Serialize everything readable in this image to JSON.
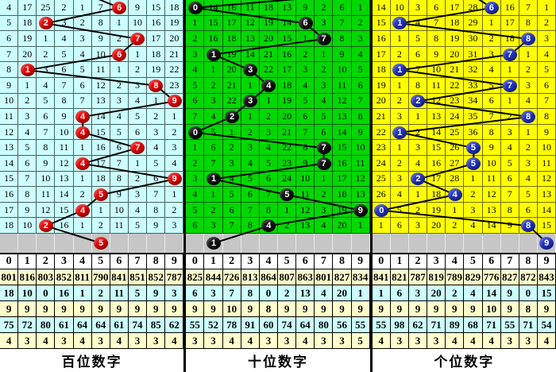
{
  "gray_row_bg": "#C6C6C6",
  "stats_row_colors": [
    "#FFFFCC",
    "#CCFFFF",
    "#FFFFCC",
    "#CCFFFF",
    "#FFFFCC"
  ],
  "line_color": "#000000",
  "chart_data": [
    {
      "type": "table",
      "title": "百位数字",
      "columns": [
        "0",
        "1",
        "2",
        "3",
        "4",
        "5",
        "6",
        "7",
        "8",
        "9"
      ],
      "cell_bg": "#CCFFFF",
      "grid_line": "#47625f",
      "ball_color": "#EE0000",
      "drawn_sequence": [
        6,
        2,
        7,
        6,
        1,
        8,
        9,
        4,
        4,
        7,
        4,
        9,
        5,
        4,
        2
      ],
      "next_ball": 5,
      "rows": [
        {
          "ball": 6,
          "cells": [
            "4",
            "17",
            "25",
            "2",
            "1",
            "7",
            "",
            "9",
            "15",
            "18"
          ]
        },
        {
          "ball": 2,
          "cells": [
            "5",
            "18",
            "",
            "3",
            "2",
            "8",
            "1",
            "10",
            "16",
            "19"
          ]
        },
        {
          "ball": 7,
          "cells": [
            "6",
            "19",
            "1",
            "4",
            "3",
            "9",
            "2",
            "",
            "17",
            "20"
          ]
        },
        {
          "ball": 6,
          "cells": [
            "7",
            "20",
            "2",
            "5",
            "4",
            "10",
            "",
            "1",
            "18",
            "21"
          ]
        },
        {
          "ball": 1,
          "cells": [
            "8",
            "",
            "3",
            "6",
            "5",
            "11",
            "1",
            "2",
            "19",
            "22"
          ]
        },
        {
          "ball": 8,
          "cells": [
            "9",
            "1",
            "4",
            "7",
            "6",
            "12",
            "2",
            "3",
            "",
            "23"
          ]
        },
        {
          "ball": 9,
          "cells": [
            "10",
            "2",
            "5",
            "8",
            "7",
            "13",
            "3",
            "4",
            "1",
            ""
          ]
        },
        {
          "ball": 4,
          "cells": [
            "11",
            "3",
            "6",
            "9",
            "",
            "14",
            "4",
            "5",
            "2",
            "1"
          ]
        },
        {
          "ball": 4,
          "cells": [
            "12",
            "4",
            "7",
            "10",
            "",
            "15",
            "5",
            "6",
            "3",
            "2"
          ]
        },
        {
          "ball": 7,
          "cells": [
            "13",
            "5",
            "8",
            "11",
            "1",
            "16",
            "6",
            "",
            "4",
            "3"
          ]
        },
        {
          "ball": 4,
          "cells": [
            "14",
            "6",
            "9",
            "12",
            "",
            "17",
            "7",
            "1",
            "5",
            "4"
          ]
        },
        {
          "ball": 9,
          "cells": [
            "15",
            "7",
            "10",
            "13",
            "1",
            "18",
            "8",
            "2",
            "6",
            ""
          ]
        },
        {
          "ball": 5,
          "cells": [
            "16",
            "8",
            "11",
            "14",
            "2",
            "",
            "9",
            "3",
            "7",
            "1"
          ]
        },
        {
          "ball": 4,
          "cells": [
            "17",
            "9",
            "12",
            "15",
            "",
            "1",
            "10",
            "4",
            "8",
            "2"
          ]
        },
        {
          "ball": 2,
          "cells": [
            "18",
            "10",
            "",
            "16",
            "1",
            "2",
            "11",
            "5",
            "9",
            "3"
          ]
        }
      ],
      "stats": [
        [
          "801",
          "816",
          "803",
          "852",
          "811",
          "790",
          "841",
          "851",
          "852",
          "787"
        ],
        [
          "18",
          "10",
          "0",
          "16",
          "1",
          "2",
          "11",
          "5",
          "9",
          "3"
        ],
        [
          "9",
          "9",
          "9",
          "9",
          "9",
          "9",
          "9",
          "9",
          "9",
          "9"
        ],
        [
          "75",
          "72",
          "80",
          "61",
          "64",
          "64",
          "61",
          "74",
          "85",
          "62"
        ],
        [
          "4",
          "3",
          "4",
          "3",
          "4",
          "3",
          "4",
          "3",
          "3",
          "4"
        ]
      ]
    },
    {
      "type": "table",
      "title": "十位数字",
      "columns": [
        "0",
        "1",
        "2",
        "3",
        "4",
        "5",
        "6",
        "7",
        "8",
        "9"
      ],
      "cell_bg": "#00D800",
      "grid_line": "#0a5a0a",
      "ball_color": "#0D0D0D",
      "drawn_sequence": [
        0,
        6,
        7,
        1,
        3,
        4,
        3,
        2,
        0,
        7,
        7,
        1,
        5,
        9,
        4
      ],
      "next_ball": 1,
      "rows": [
        {
          "ball": 0,
          "cells": [
            "",
            "14",
            "16",
            "11",
            "18",
            "13",
            "9",
            "2",
            "6",
            "1"
          ]
        },
        {
          "ball": 6,
          "cells": [
            "1",
            "15",
            "17",
            "12",
            "19",
            "14",
            "",
            "3",
            "7",
            "2"
          ]
        },
        {
          "ball": 7,
          "cells": [
            "2",
            "16",
            "18",
            "13",
            "20",
            "15",
            "1",
            "",
            "8",
            "3"
          ]
        },
        {
          "ball": 1,
          "cells": [
            "3",
            "",
            "19",
            "14",
            "21",
            "16",
            "2",
            "1",
            "9",
            "4"
          ]
        },
        {
          "ball": 3,
          "cells": [
            "4",
            "1",
            "20",
            "",
            "22",
            "17",
            "3",
            "2",
            "10",
            "5"
          ]
        },
        {
          "ball": 4,
          "cells": [
            "5",
            "2",
            "21",
            "1",
            "",
            "18",
            "4",
            "3",
            "11",
            "6"
          ]
        },
        {
          "ball": 3,
          "cells": [
            "6",
            "3",
            "22",
            "",
            "1",
            "19",
            "5",
            "4",
            "12",
            "7"
          ]
        },
        {
          "ball": 2,
          "cells": [
            "7",
            "4",
            "",
            "1",
            "2",
            "20",
            "6",
            "5",
            "13",
            "8"
          ]
        },
        {
          "ball": 0,
          "cells": [
            "",
            "5",
            "1",
            "2",
            "3",
            "21",
            "7",
            "6",
            "14",
            "9"
          ]
        },
        {
          "ball": 7,
          "cells": [
            "1",
            "6",
            "2",
            "3",
            "4",
            "22",
            "8",
            "",
            "15",
            "10"
          ]
        },
        {
          "ball": 7,
          "cells": [
            "2",
            "7",
            "3",
            "4",
            "5",
            "23",
            "9",
            "",
            "16",
            "11"
          ]
        },
        {
          "ball": 1,
          "cells": [
            "3",
            "",
            "4",
            "5",
            "6",
            "24",
            "10",
            "1",
            "17",
            "12"
          ]
        },
        {
          "ball": 5,
          "cells": [
            "4",
            "1",
            "5",
            "6",
            "7",
            "",
            "11",
            "2",
            "18",
            "13"
          ]
        },
        {
          "ball": 9,
          "cells": [
            "5",
            "2",
            "6",
            "7",
            "8",
            "1",
            "12",
            "3",
            "19",
            ""
          ]
        },
        {
          "ball": 4,
          "cells": [
            "6",
            "3",
            "7",
            "8",
            "",
            "2",
            "13",
            "4",
            "20",
            "1"
          ]
        }
      ],
      "stats": [
        [
          "825",
          "844",
          "726",
          "813",
          "864",
          "807",
          "863",
          "801",
          "827",
          "834"
        ],
        [
          "6",
          "3",
          "7",
          "8",
          "0",
          "2",
          "13",
          "4",
          "20",
          "1"
        ],
        [
          "9",
          "9",
          "10",
          "9",
          "8",
          "9",
          "9",
          "9",
          "9",
          "9"
        ],
        [
          "55",
          "52",
          "78",
          "91",
          "60",
          "74",
          "64",
          "80",
          "56",
          "55"
        ],
        [
          "3",
          "3",
          "4",
          "4",
          "3",
          "3",
          "4",
          "3",
          "3",
          "5"
        ]
      ]
    },
    {
      "type": "table",
      "title": "个位数字",
      "columns": [
        "0",
        "1",
        "2",
        "3",
        "4",
        "5",
        "6",
        "7",
        "8",
        "9"
      ],
      "cell_bg": "#FFFF00",
      "grid_line": "#6e6e14",
      "ball_color": "#2233CC",
      "drawn_sequence": [
        6,
        1,
        8,
        7,
        1,
        7,
        2,
        8,
        1,
        5,
        5,
        2,
        4,
        0,
        8
      ],
      "next_ball": 9,
      "rows": [
        {
          "ball": 6,
          "cells": [
            "14",
            "10",
            "3",
            "6",
            "17",
            "28",
            "",
            "16",
            "7",
            "1"
          ]
        },
        {
          "ball": 1,
          "cells": [
            "15",
            "",
            "4",
            "7",
            "18",
            "29",
            "1",
            "17",
            "8",
            "2"
          ]
        },
        {
          "ball": 8,
          "cells": [
            "16",
            "1",
            "5",
            "8",
            "19",
            "30",
            "2",
            "18",
            "",
            "3"
          ]
        },
        {
          "ball": 7,
          "cells": [
            "17",
            "2",
            "6",
            "9",
            "20",
            "31",
            "3",
            "",
            "1",
            "4"
          ]
        },
        {
          "ball": 1,
          "cells": [
            "18",
            "",
            "7",
            "10",
            "21",
            "32",
            "4",
            "1",
            "2",
            "5"
          ]
        },
        {
          "ball": 7,
          "cells": [
            "19",
            "1",
            "8",
            "11",
            "22",
            "33",
            "5",
            "",
            "3",
            "6"
          ]
        },
        {
          "ball": 2,
          "cells": [
            "20",
            "2",
            "",
            "12",
            "23",
            "34",
            "6",
            "1",
            "4",
            "7"
          ]
        },
        {
          "ball": 8,
          "cells": [
            "21",
            "3",
            "1",
            "13",
            "24",
            "35",
            "7",
            "2",
            "",
            "8"
          ]
        },
        {
          "ball": 1,
          "cells": [
            "22",
            "",
            "2",
            "14",
            "25",
            "36",
            "8",
            "3",
            "1",
            "9"
          ]
        },
        {
          "ball": 5,
          "cells": [
            "23",
            "1",
            "3",
            "15",
            "26",
            "",
            "9",
            "4",
            "2",
            "10"
          ]
        },
        {
          "ball": 5,
          "cells": [
            "24",
            "2",
            "4",
            "16",
            "27",
            "",
            "10",
            "5",
            "3",
            "11"
          ]
        },
        {
          "ball": 2,
          "cells": [
            "25",
            "3",
            "",
            "17",
            "28",
            "1",
            "11",
            "6",
            "4",
            "12"
          ]
        },
        {
          "ball": 4,
          "cells": [
            "26",
            "4",
            "1",
            "18",
            "",
            "2",
            "12",
            "7",
            "5",
            "13"
          ]
        },
        {
          "ball": 0,
          "cells": [
            "",
            "5",
            "2",
            "19",
            "1",
            "3",
            "13",
            "8",
            "6",
            "14"
          ]
        },
        {
          "ball": 8,
          "cells": [
            "1",
            "6",
            "3",
            "20",
            "2",
            "4",
            "14",
            "9",
            "",
            "15"
          ]
        }
      ],
      "stats": [
        [
          "841",
          "821",
          "787",
          "819",
          "789",
          "829",
          "776",
          "827",
          "872",
          "843"
        ],
        [
          "1",
          "6",
          "3",
          "20",
          "2",
          "4",
          "14",
          "9",
          "0",
          "15"
        ],
        [
          "9",
          "9",
          "9",
          "9",
          "9",
          "9",
          "10",
          "9",
          "8",
          "9"
        ],
        [
          "55",
          "98",
          "62",
          "71",
          "89",
          "68",
          "71",
          "55",
          "71",
          "54"
        ],
        [
          "4",
          "3",
          "3",
          "3",
          "4",
          "4",
          "4",
          "3",
          "3",
          "4"
        ]
      ]
    }
  ]
}
